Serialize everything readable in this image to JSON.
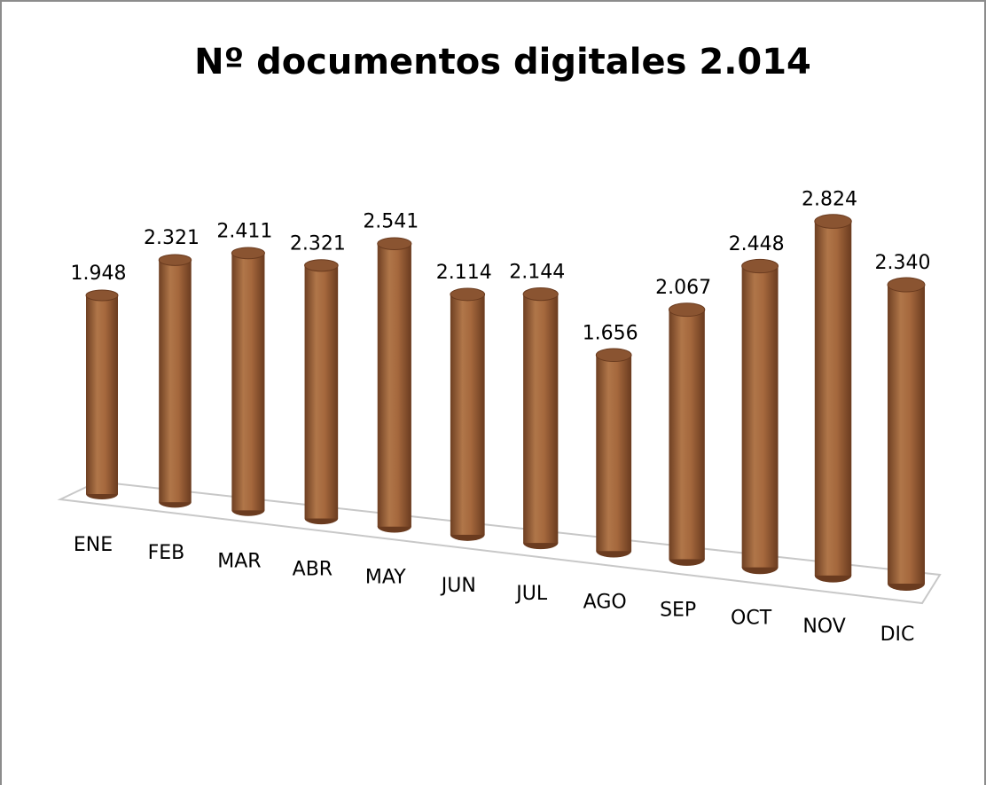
{
  "chart_data": {
    "type": "bar",
    "title": "Nº documentos digitales 2.014",
    "categories": [
      "ENE",
      "FEB",
      "MAR",
      "ABR",
      "MAY",
      "JUN",
      "JUL",
      "AGO",
      "SEP",
      "OCT",
      "NOV",
      "DIC"
    ],
    "values": [
      1948,
      2321,
      2411,
      2321,
      2541,
      2114,
      2144,
      1656,
      2067,
      2448,
      2824,
      2340
    ],
    "value_labels": [
      "1.948",
      "2.321",
      "2.411",
      "2.321",
      "2.541",
      "2.114",
      "2.144",
      "1.656",
      "2.067",
      "2.448",
      "2.824",
      "2.340"
    ],
    "color": "#a5683d"
  }
}
